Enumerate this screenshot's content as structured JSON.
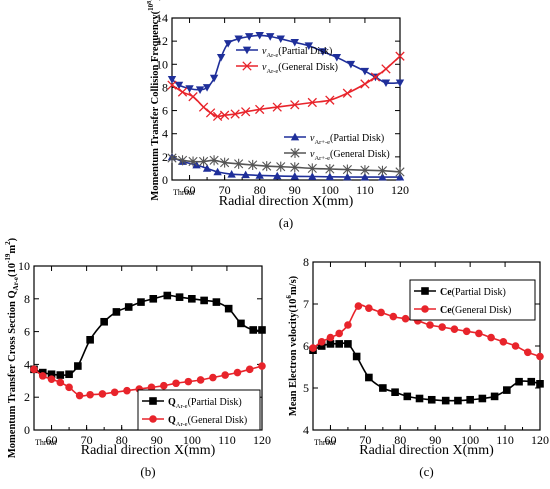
{
  "figure": {
    "panels": [
      "(a)",
      "(b)",
      "(c)"
    ]
  },
  "chart_data": [
    {
      "type": "line",
      "panel": "(a)",
      "title": "",
      "xlabel": "Radial direction X(mm)",
      "ylabel": "Momentum Transfer Collision Frequency(10^8)",
      "ylabel_main": "Momentum Transfer Collision Frequency(",
      "ylabel_sup": "10",
      "ylabel_supsup": "8",
      "ylabel_close": ")",
      "xlim": [
        55,
        120
      ],
      "ylim": [
        0,
        14
      ],
      "xticks": [
        60,
        70,
        80,
        90,
        100,
        110,
        120
      ],
      "yticks": [
        0,
        2,
        4,
        6,
        8,
        10,
        12,
        14
      ],
      "x_start_label": "Throat",
      "grid": false,
      "legends": [
        {
          "placement": "top-center",
          "entries": [
            {
              "symbol": "ν",
              "sub": "Ar-e",
              "text": "(Partial Disk)"
            },
            {
              "symbol": "ν",
              "sub": "Ar-e",
              "text": "(General Disk)"
            }
          ]
        },
        {
          "placement": "lower-right",
          "entries": [
            {
              "symbol": "ν",
              "sub": "Ar+-e",
              "text": "(Partial Disk)"
            },
            {
              "symbol": "ν",
              "sub": "Ar+-e",
              "text": "(General Disk)"
            }
          ]
        }
      ],
      "series": [
        {
          "name": "ν Ar-e (Partial Disk)",
          "color": "#1f2f9a",
          "marker": "triangle-down",
          "x": [
            55,
            57,
            60,
            63,
            65,
            67,
            69,
            71,
            74,
            77,
            80,
            83,
            86,
            90,
            94,
            98,
            102,
            106,
            110,
            113,
            116,
            120
          ],
          "y": [
            8.7,
            8.2,
            7.9,
            7.8,
            8.0,
            8.8,
            10.6,
            11.8,
            12.2,
            12.4,
            12.5,
            12.4,
            12.2,
            11.9,
            11.6,
            11.1,
            10.6,
            10.0,
            9.4,
            8.9,
            8.4,
            8.4
          ]
        },
        {
          "name": "ν Ar-e (General Disk)",
          "color": "#e8242b",
          "marker": "x",
          "x": [
            55,
            58,
            61,
            64,
            66,
            68,
            70,
            73,
            76,
            80,
            85,
            90,
            95,
            100,
            105,
            110,
            113,
            116,
            120
          ],
          "y": [
            8.2,
            7.6,
            7.2,
            6.3,
            5.8,
            5.5,
            5.6,
            5.7,
            5.9,
            6.1,
            6.3,
            6.5,
            6.7,
            6.9,
            7.5,
            8.3,
            8.9,
            9.6,
            10.7
          ]
        },
        {
          "name": "ν Ar+-e (Partial Disk)",
          "color": "#1f2f9a",
          "marker": "triangle-up",
          "x": [
            55,
            58,
            62,
            65,
            68,
            72,
            76,
            80,
            85,
            90,
            95,
            100,
            105,
            110,
            115,
            120
          ],
          "y": [
            2.0,
            1.6,
            1.3,
            1.0,
            0.7,
            0.5,
            0.45,
            0.4,
            0.35,
            0.32,
            0.3,
            0.28,
            0.26,
            0.25,
            0.25,
            0.25
          ]
        },
        {
          "name": "ν Ar+-e (General Disk)",
          "color": "#555555",
          "marker": "asterisk",
          "x": [
            55,
            58,
            61,
            64,
            67,
            70,
            74,
            78,
            82,
            86,
            90,
            95,
            100,
            105,
            110,
            115,
            120
          ],
          "y": [
            1.9,
            1.7,
            1.6,
            1.6,
            1.7,
            1.5,
            1.4,
            1.3,
            1.2,
            1.15,
            1.1,
            1.0,
            0.95,
            0.9,
            0.85,
            0.8,
            0.7
          ]
        }
      ]
    },
    {
      "type": "line",
      "panel": "(b)",
      "title": "",
      "xlabel": "Radial direction X(mm)",
      "ylabel": "Momentum Transfer Cross Section Q Ar-e (10^-19 m^2)",
      "ylabel_main": "Momentum Transfer Cross Section  Q",
      "ylabel_sub": "Ar-e",
      "ylabel_unit": "(10",
      "ylabel_sup": "-19",
      "ylabel_unit2": "m",
      "ylabel_sup2": "2",
      "ylabel_close": ")",
      "xlim": [
        55,
        120
      ],
      "ylim": [
        0,
        10
      ],
      "xticks": [
        60,
        70,
        80,
        90,
        100,
        110,
        120
      ],
      "yticks": [
        0,
        2,
        4,
        6,
        8,
        10
      ],
      "x_start_label": "Throat",
      "grid": false,
      "legends": [
        {
          "placement": "bottom-right",
          "entries": [
            {
              "symbol": "Q",
              "sub": "Ar-e",
              "text": "(Partial Disk)"
            },
            {
              "symbol": "Q",
              "sub": "Ar-e",
              "text": "(General Disk)"
            }
          ]
        }
      ],
      "series": [
        {
          "name": "Q Ar-e (Partial Disk)",
          "color": "#000000",
          "marker": "square",
          "x": [
            55,
            57.5,
            60,
            62.5,
            65,
            67.5,
            71,
            75,
            78.5,
            82,
            85.5,
            89,
            93,
            96.5,
            100,
            103.5,
            107,
            110.5,
            114,
            117.5,
            120
          ],
          "y": [
            3.7,
            3.5,
            3.4,
            3.35,
            3.4,
            3.9,
            5.5,
            6.6,
            7.2,
            7.5,
            7.8,
            8.0,
            8.2,
            8.1,
            8.0,
            7.9,
            7.8,
            7.4,
            6.5,
            6.1,
            6.1
          ]
        },
        {
          "name": "Q Ar-e (General Disk)",
          "color": "#e8242b",
          "marker": "circle",
          "x": [
            55,
            57.5,
            60,
            62.5,
            65,
            68,
            71,
            74.5,
            78,
            81.5,
            85,
            88.5,
            92,
            95.5,
            99,
            102.5,
            106,
            109.5,
            113,
            116.5,
            120
          ],
          "y": [
            3.7,
            3.3,
            3.1,
            2.9,
            2.6,
            2.1,
            2.15,
            2.2,
            2.3,
            2.4,
            2.5,
            2.6,
            2.7,
            2.85,
            2.95,
            3.05,
            3.2,
            3.35,
            3.5,
            3.7,
            3.9
          ]
        }
      ]
    },
    {
      "type": "line",
      "panel": "(c)",
      "title": "",
      "xlabel": "Radial direction X(mm)",
      "ylabel": "Mean Electron velocity(10^6 m/s)",
      "ylabel_main": "Mean Electron velocity(10",
      "ylabel_sup": "6",
      "ylabel_close": "m/s)",
      "xlim": [
        55,
        120
      ],
      "ylim": [
        4,
        8
      ],
      "xticks": [
        60,
        70,
        80,
        90,
        100,
        110,
        120
      ],
      "yticks": [
        4,
        5,
        6,
        7,
        8
      ],
      "x_start_label": "Throat",
      "grid": false,
      "legends": [
        {
          "placement": "top-right",
          "entries": [
            {
              "symbol": "Ce",
              "sub": "",
              "text": "(Partial Disk)"
            },
            {
              "symbol": "Ce",
              "sub": "",
              "text": "(General Disk)"
            }
          ]
        }
      ],
      "series": [
        {
          "name": "Ce (Partial Disk)",
          "color": "#000000",
          "marker": "square",
          "x": [
            55,
            57.5,
            60,
            62.5,
            65,
            67.5,
            71,
            75,
            78.5,
            82,
            85.5,
            89,
            93,
            96.5,
            100,
            103.5,
            107,
            110.5,
            114,
            117.5,
            120
          ],
          "y": [
            5.9,
            6.0,
            6.05,
            6.05,
            6.05,
            5.75,
            5.25,
            5.0,
            4.9,
            4.8,
            4.75,
            4.72,
            4.7,
            4.7,
            4.72,
            4.75,
            4.8,
            4.95,
            5.15,
            5.15,
            5.1
          ]
        },
        {
          "name": "Ce (General Disk)",
          "color": "#e8242b",
          "marker": "circle",
          "x": [
            55,
            57.5,
            60,
            62.5,
            65,
            68,
            71,
            74.5,
            78,
            81.5,
            85,
            88.5,
            92,
            95.5,
            99,
            102.5,
            106,
            109.5,
            113,
            116.5,
            120
          ],
          "y": [
            5.95,
            6.1,
            6.2,
            6.3,
            6.5,
            6.95,
            6.9,
            6.8,
            6.7,
            6.65,
            6.6,
            6.5,
            6.45,
            6.4,
            6.35,
            6.3,
            6.2,
            6.1,
            6.0,
            5.85,
            5.75
          ]
        }
      ]
    }
  ]
}
